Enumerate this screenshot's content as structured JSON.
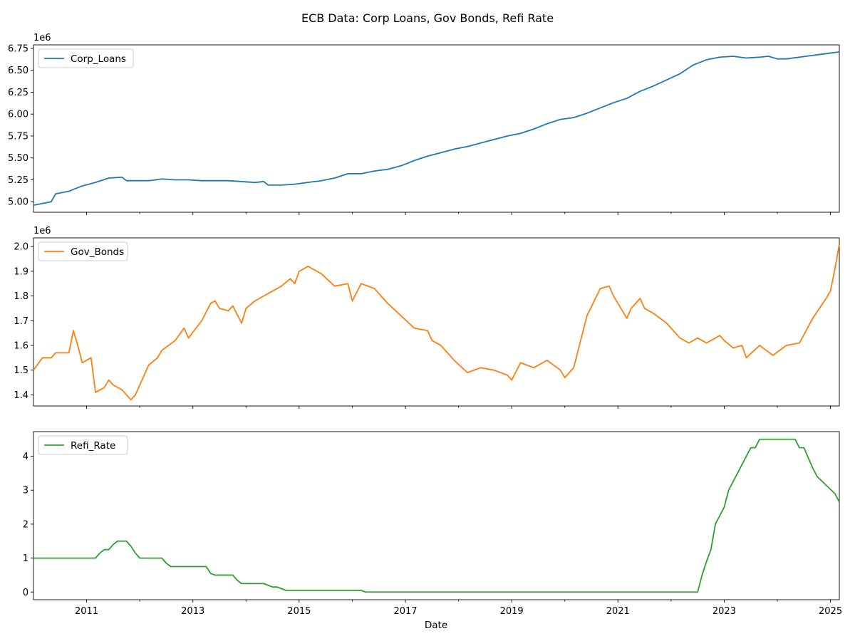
{
  "figure": {
    "title": "ECB Data: Corp Loans, Gov Bonds, Refi Rate"
  },
  "chart_data": {
    "type": "line",
    "title": "ECB Data: Corp Loans, Gov Bonds, Refi Rate",
    "xlabel": "Date",
    "x_range": [
      "2010-01",
      "2025-03"
    ],
    "x_tick_labels": [
      "2011",
      "2013",
      "2015",
      "2017",
      "2019",
      "2021",
      "2023",
      "2025"
    ],
    "grid": false,
    "shared_x": true,
    "panels": [
      {
        "series_name": "Corp_Loans",
        "color": "#1f77b4",
        "offset_label": "1e6",
        "ylim": [
          4.88,
          6.79
        ],
        "y_ticks": [
          5.0,
          5.25,
          5.5,
          5.75,
          6.0,
          6.25,
          6.5,
          6.75
        ],
        "y_tick_labels": [
          "5.00",
          "5.25",
          "5.50",
          "5.75",
          "6.00",
          "6.25",
          "6.50",
          "6.75"
        ],
        "legend_position": "upper-left",
        "points": [
          [
            "2010-01",
            4.96
          ],
          [
            "2010-04",
            4.99
          ],
          [
            "2010-05",
            5.0
          ],
          [
            "2010-06",
            5.09
          ],
          [
            "2010-09",
            5.12
          ],
          [
            "2010-12",
            5.18
          ],
          [
            "2011-03",
            5.22
          ],
          [
            "2011-06",
            5.27
          ],
          [
            "2011-09",
            5.28
          ],
          [
            "2011-10",
            5.24
          ],
          [
            "2011-12",
            5.24
          ],
          [
            "2012-03",
            5.24
          ],
          [
            "2012-06",
            5.26
          ],
          [
            "2012-09",
            5.25
          ],
          [
            "2012-12",
            5.25
          ],
          [
            "2013-03",
            5.24
          ],
          [
            "2013-06",
            5.24
          ],
          [
            "2013-09",
            5.24
          ],
          [
            "2013-12",
            5.23
          ],
          [
            "2014-03",
            5.22
          ],
          [
            "2014-05",
            5.23
          ],
          [
            "2014-06",
            5.19
          ],
          [
            "2014-09",
            5.19
          ],
          [
            "2014-12",
            5.2
          ],
          [
            "2015-03",
            5.22
          ],
          [
            "2015-06",
            5.24
          ],
          [
            "2015-09",
            5.27
          ],
          [
            "2015-12",
            5.32
          ],
          [
            "2016-03",
            5.32
          ],
          [
            "2016-06",
            5.35
          ],
          [
            "2016-09",
            5.37
          ],
          [
            "2016-12",
            5.41
          ],
          [
            "2017-03",
            5.47
          ],
          [
            "2017-06",
            5.52
          ],
          [
            "2017-09",
            5.56
          ],
          [
            "2017-12",
            5.6
          ],
          [
            "2018-03",
            5.63
          ],
          [
            "2018-06",
            5.67
          ],
          [
            "2018-09",
            5.71
          ],
          [
            "2018-12",
            5.75
          ],
          [
            "2019-03",
            5.78
          ],
          [
            "2019-06",
            5.83
          ],
          [
            "2019-09",
            5.89
          ],
          [
            "2019-12",
            5.94
          ],
          [
            "2020-03",
            5.96
          ],
          [
            "2020-06",
            6.01
          ],
          [
            "2020-09",
            6.07
          ],
          [
            "2020-12",
            6.13
          ],
          [
            "2021-03",
            6.18
          ],
          [
            "2021-06",
            6.26
          ],
          [
            "2021-09",
            6.32
          ],
          [
            "2021-12",
            6.39
          ],
          [
            "2022-03",
            6.46
          ],
          [
            "2022-06",
            6.56
          ],
          [
            "2022-09",
            6.62
          ],
          [
            "2022-12",
            6.65
          ],
          [
            "2023-03",
            6.66
          ],
          [
            "2023-06",
            6.64
          ],
          [
            "2023-09",
            6.65
          ],
          [
            "2023-11",
            6.66
          ],
          [
            "2024-01",
            6.63
          ],
          [
            "2024-03",
            6.63
          ],
          [
            "2024-06",
            6.65
          ],
          [
            "2024-09",
            6.67
          ],
          [
            "2024-12",
            6.69
          ],
          [
            "2025-03",
            6.71
          ]
        ]
      },
      {
        "series_name": "Gov_Bonds",
        "color": "#ff7f0e",
        "offset_label": "1e6",
        "ylim": [
          1.355,
          2.035
        ],
        "y_ticks": [
          1.4,
          1.5,
          1.6,
          1.7,
          1.8,
          1.9,
          2.0
        ],
        "y_tick_labels": [
          "1.4",
          "1.5",
          "1.6",
          "1.7",
          "1.8",
          "1.9",
          "2.0"
        ],
        "legend_position": "upper-left",
        "points": [
          [
            "2010-01",
            1.5
          ],
          [
            "2010-03",
            1.55
          ],
          [
            "2010-05",
            1.55
          ],
          [
            "2010-06",
            1.57
          ],
          [
            "2010-09",
            1.57
          ],
          [
            "2010-10",
            1.66
          ],
          [
            "2010-11",
            1.6
          ],
          [
            "2010-12",
            1.53
          ],
          [
            "2011-02",
            1.55
          ],
          [
            "2011-03",
            1.41
          ],
          [
            "2011-05",
            1.43
          ],
          [
            "2011-06",
            1.46
          ],
          [
            "2011-07",
            1.44
          ],
          [
            "2011-09",
            1.42
          ],
          [
            "2011-11",
            1.38
          ],
          [
            "2011-12",
            1.4
          ],
          [
            "2012-03",
            1.52
          ],
          [
            "2012-05",
            1.55
          ],
          [
            "2012-06",
            1.58
          ],
          [
            "2012-09",
            1.62
          ],
          [
            "2012-11",
            1.67
          ],
          [
            "2012-12",
            1.63
          ],
          [
            "2013-03",
            1.7
          ],
          [
            "2013-05",
            1.77
          ],
          [
            "2013-06",
            1.78
          ],
          [
            "2013-07",
            1.75
          ],
          [
            "2013-09",
            1.74
          ],
          [
            "2013-10",
            1.76
          ],
          [
            "2013-12",
            1.69
          ],
          [
            "2014-01",
            1.75
          ],
          [
            "2014-03",
            1.78
          ],
          [
            "2014-06",
            1.81
          ],
          [
            "2014-09",
            1.84
          ],
          [
            "2014-11",
            1.87
          ],
          [
            "2014-12",
            1.85
          ],
          [
            "2015-01",
            1.9
          ],
          [
            "2015-03",
            1.92
          ],
          [
            "2015-06",
            1.89
          ],
          [
            "2015-09",
            1.84
          ],
          [
            "2015-12",
            1.85
          ],
          [
            "2016-01",
            1.78
          ],
          [
            "2016-03",
            1.85
          ],
          [
            "2016-06",
            1.83
          ],
          [
            "2016-09",
            1.77
          ],
          [
            "2016-12",
            1.72
          ],
          [
            "2017-03",
            1.67
          ],
          [
            "2017-06",
            1.66
          ],
          [
            "2017-07",
            1.62
          ],
          [
            "2017-09",
            1.6
          ],
          [
            "2017-12",
            1.54
          ],
          [
            "2018-03",
            1.49
          ],
          [
            "2018-06",
            1.51
          ],
          [
            "2018-09",
            1.5
          ],
          [
            "2018-12",
            1.48
          ],
          [
            "2019-01",
            1.46
          ],
          [
            "2019-03",
            1.53
          ],
          [
            "2019-06",
            1.51
          ],
          [
            "2019-09",
            1.54
          ],
          [
            "2019-12",
            1.5
          ],
          [
            "2020-01",
            1.47
          ],
          [
            "2020-03",
            1.51
          ],
          [
            "2020-06",
            1.72
          ],
          [
            "2020-09",
            1.83
          ],
          [
            "2020-11",
            1.84
          ],
          [
            "2020-12",
            1.8
          ],
          [
            "2021-03",
            1.71
          ],
          [
            "2021-04",
            1.75
          ],
          [
            "2021-06",
            1.79
          ],
          [
            "2021-07",
            1.75
          ],
          [
            "2021-09",
            1.73
          ],
          [
            "2021-12",
            1.69
          ],
          [
            "2022-03",
            1.63
          ],
          [
            "2022-05",
            1.61
          ],
          [
            "2022-07",
            1.63
          ],
          [
            "2022-09",
            1.61
          ],
          [
            "2022-12",
            1.64
          ],
          [
            "2023-01",
            1.62
          ],
          [
            "2023-03",
            1.59
          ],
          [
            "2023-05",
            1.6
          ],
          [
            "2023-06",
            1.55
          ],
          [
            "2023-09",
            1.6
          ],
          [
            "2023-12",
            1.56
          ],
          [
            "2024-03",
            1.6
          ],
          [
            "2024-06",
            1.61
          ],
          [
            "2024-09",
            1.71
          ],
          [
            "2024-12",
            1.79
          ],
          [
            "2025-01",
            1.82
          ],
          [
            "2025-02",
            1.91
          ],
          [
            "2025-03",
            2.01
          ]
        ]
      },
      {
        "series_name": "Refi_Rate",
        "color": "#2ca02c",
        "offset_label": "",
        "ylim": [
          -0.225,
          4.725
        ],
        "y_ticks": [
          0,
          1,
          2,
          3,
          4
        ],
        "y_tick_labels": [
          "0",
          "1",
          "2",
          "3",
          "4"
        ],
        "legend_position": "upper-left",
        "points": [
          [
            "2010-01",
            1.0
          ],
          [
            "2011-03",
            1.0
          ],
          [
            "2011-04",
            1.15
          ],
          [
            "2011-05",
            1.25
          ],
          [
            "2011-06",
            1.25
          ],
          [
            "2011-07",
            1.4
          ],
          [
            "2011-08",
            1.5
          ],
          [
            "2011-10",
            1.5
          ],
          [
            "2011-11",
            1.35
          ],
          [
            "2011-12",
            1.15
          ],
          [
            "2012-01",
            1.0
          ],
          [
            "2012-06",
            1.0
          ],
          [
            "2012-07",
            0.85
          ],
          [
            "2012-08",
            0.75
          ],
          [
            "2013-04",
            0.75
          ],
          [
            "2013-05",
            0.55
          ],
          [
            "2013-06",
            0.5
          ],
          [
            "2013-10",
            0.5
          ],
          [
            "2013-11",
            0.35
          ],
          [
            "2013-12",
            0.25
          ],
          [
            "2014-05",
            0.25
          ],
          [
            "2014-06",
            0.2
          ],
          [
            "2014-07",
            0.15
          ],
          [
            "2014-08",
            0.15
          ],
          [
            "2014-09",
            0.1
          ],
          [
            "2014-10",
            0.05
          ],
          [
            "2016-03",
            0.05
          ],
          [
            "2016-04",
            0.0
          ],
          [
            "2022-07",
            0.0
          ],
          [
            "2022-08",
            0.5
          ],
          [
            "2022-09",
            0.9
          ],
          [
            "2022-10",
            1.25
          ],
          [
            "2022-11",
            2.0
          ],
          [
            "2022-12",
            2.25
          ],
          [
            "2023-01",
            2.5
          ],
          [
            "2023-02",
            3.0
          ],
          [
            "2023-04",
            3.5
          ],
          [
            "2023-06",
            4.0
          ],
          [
            "2023-07",
            4.25
          ],
          [
            "2023-08",
            4.25
          ],
          [
            "2023-09",
            4.5
          ],
          [
            "2024-05",
            4.5
          ],
          [
            "2024-06",
            4.25
          ],
          [
            "2024-07",
            4.25
          ],
          [
            "2024-09",
            3.65
          ],
          [
            "2024-10",
            3.4
          ],
          [
            "2024-12",
            3.15
          ],
          [
            "2025-02",
            2.9
          ],
          [
            "2025-03",
            2.65
          ]
        ]
      }
    ]
  }
}
